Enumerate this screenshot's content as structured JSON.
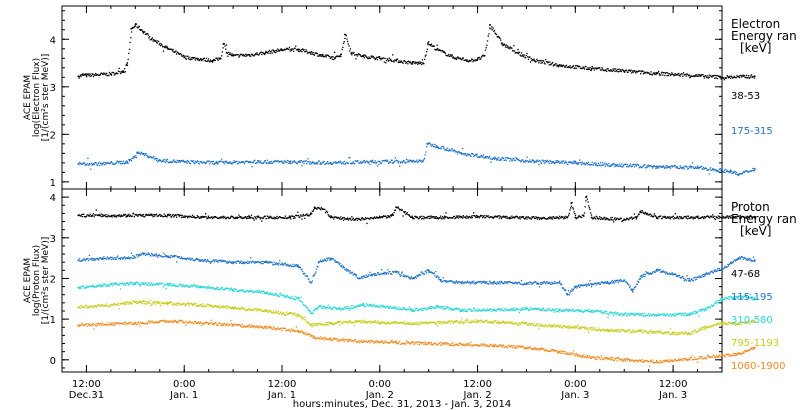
{
  "chart_data": [
    {
      "type": "scatter",
      "ylabel_lines": [
        "ACE EPAM",
        "log(Electron Flux)",
        "[1/(cm²s ster MeV)]"
      ],
      "ylim": [
        0.85,
        4.7
      ],
      "yticks": [
        1,
        2,
        3,
        4
      ],
      "legend_title": [
        "Electron",
        "Energy ran",
        "[keV]"
      ],
      "legend_placement": "right",
      "series": [
        {
          "name": "38-53",
          "color": "#000000",
          "points": [
            [
              -1,
              3.22
            ],
            [
              -0.5,
              3.25
            ],
            [
              0,
              3.24
            ],
            [
              3,
              3.27
            ],
            [
              4.5,
              3.33
            ],
            [
              5,
              3.5
            ],
            [
              5.5,
              4.22
            ],
            [
              6,
              4.3
            ],
            [
              7,
              4.15
            ],
            [
              8,
              4.0
            ],
            [
              10,
              3.8
            ],
            [
              12,
              3.62
            ],
            [
              14,
              3.58
            ],
            [
              15.5,
              3.55
            ],
            [
              16.4,
              3.6
            ],
            [
              16.8,
              3.9
            ],
            [
              17.2,
              3.72
            ],
            [
              18,
              3.65
            ],
            [
              20,
              3.67
            ],
            [
              22,
              3.72
            ],
            [
              24,
              3.78
            ],
            [
              26,
              3.78
            ],
            [
              27.5,
              3.72
            ],
            [
              29,
              3.65
            ],
            [
              30.5,
              3.6
            ],
            [
              31.2,
              3.68
            ],
            [
              31.7,
              4.1
            ],
            [
              32.5,
              3.7
            ],
            [
              34,
              3.64
            ],
            [
              36,
              3.6
            ],
            [
              38,
              3.55
            ],
            [
              40,
              3.5
            ],
            [
              41.3,
              3.5
            ],
            [
              41.9,
              3.92
            ],
            [
              43,
              3.78
            ],
            [
              45,
              3.62
            ],
            [
              47,
              3.55
            ],
            [
              48,
              3.58
            ],
            [
              48.8,
              3.65
            ],
            [
              49.5,
              4.3
            ],
            [
              51,
              3.9
            ],
            [
              53,
              3.7
            ],
            [
              55,
              3.55
            ],
            [
              58,
              3.45
            ],
            [
              62,
              3.38
            ],
            [
              66,
              3.33
            ],
            [
              70,
              3.28
            ],
            [
              74,
              3.24
            ],
            [
              78,
              3.2
            ],
            [
              82,
              3.22
            ]
          ]
        },
        {
          "name": "175-315",
          "color": "#1f73c6",
          "points": [
            [
              -1,
              1.38
            ],
            [
              2,
              1.38
            ],
            [
              5,
              1.42
            ],
            [
              5.7,
              1.5
            ],
            [
              6.2,
              1.62
            ],
            [
              7,
              1.58
            ],
            [
              9,
              1.45
            ],
            [
              12,
              1.42
            ],
            [
              16,
              1.4
            ],
            [
              20,
              1.42
            ],
            [
              25,
              1.42
            ],
            [
              30,
              1.4
            ],
            [
              35,
              1.42
            ],
            [
              40,
              1.43
            ],
            [
              41.3,
              1.44
            ],
            [
              41.8,
              1.8
            ],
            [
              43,
              1.75
            ],
            [
              46,
              1.6
            ],
            [
              50,
              1.5
            ],
            [
              55,
              1.43
            ],
            [
              60,
              1.4
            ],
            [
              65,
              1.35
            ],
            [
              70,
              1.32
            ],
            [
              75,
              1.3
            ],
            [
              79,
              1.22
            ],
            [
              80,
              1.15
            ],
            [
              82,
              1.28
            ]
          ]
        }
      ],
      "annotations": []
    },
    {
      "type": "scatter",
      "ylabel_lines": [
        "ACE EPAM",
        "log(Proton Flux)",
        "[1/(cm²s ster MeV)]"
      ],
      "ylim": [
        -0.3,
        4.2
      ],
      "yticks": [
        0,
        1,
        2,
        3,
        4
      ],
      "legend_title": [
        "Proton",
        "Energy ran",
        "[keV]"
      ],
      "legend_placement": "right",
      "series": [
        {
          "name": "47-68",
          "color": "#000000",
          "points": [
            [
              -1,
              3.55
            ],
            [
              5,
              3.55
            ],
            [
              10,
              3.55
            ],
            [
              15,
              3.5
            ],
            [
              20,
              3.5
            ],
            [
              25,
              3.5
            ],
            [
              27.5,
              3.58
            ],
            [
              28,
              3.75
            ],
            [
              29,
              3.7
            ],
            [
              30,
              3.5
            ],
            [
              33,
              3.45
            ],
            [
              36,
              3.5
            ],
            [
              37.5,
              3.55
            ],
            [
              38,
              3.75
            ],
            [
              40,
              3.5
            ],
            [
              44,
              3.5
            ],
            [
              48,
              3.52
            ],
            [
              52,
              3.5
            ],
            [
              56,
              3.48
            ],
            [
              59,
              3.5
            ],
            [
              59.5,
              3.85
            ],
            [
              60,
              3.5
            ],
            [
              61,
              3.55
            ],
            [
              61.3,
              4.0
            ],
            [
              62,
              3.5
            ],
            [
              66,
              3.45
            ],
            [
              67.5,
              3.5
            ],
            [
              68,
              3.65
            ],
            [
              70,
              3.5
            ],
            [
              75,
              3.5
            ],
            [
              82,
              3.52
            ]
          ]
        },
        {
          "name": "115-195",
          "color": "#1f73c6",
          "points": [
            [
              -1,
              2.45
            ],
            [
              2,
              2.5
            ],
            [
              5,
              2.5
            ],
            [
              7,
              2.6
            ],
            [
              10,
              2.55
            ],
            [
              14,
              2.45
            ],
            [
              18,
              2.4
            ],
            [
              22,
              2.4
            ],
            [
              26,
              2.3
            ],
            [
              27.5,
              1.9
            ],
            [
              28.5,
              2.4
            ],
            [
              30,
              2.5
            ],
            [
              32,
              2.2
            ],
            [
              33.5,
              2.0
            ],
            [
              35,
              2.1
            ],
            [
              38,
              2.15
            ],
            [
              40,
              2.0
            ],
            [
              42,
              2.2
            ],
            [
              43.5,
              1.95
            ],
            [
              46,
              1.9
            ],
            [
              50,
              1.9
            ],
            [
              54,
              1.88
            ],
            [
              58,
              1.9
            ],
            [
              59,
              1.6
            ],
            [
              60,
              1.8
            ],
            [
              62,
              1.85
            ],
            [
              64,
              1.9
            ],
            [
              66,
              1.95
            ],
            [
              67,
              1.7
            ],
            [
              68,
              2.05
            ],
            [
              70,
              2.2
            ],
            [
              72,
              2.1
            ],
            [
              74,
              1.95
            ],
            [
              76,
              2.1
            ],
            [
              78,
              2.25
            ],
            [
              80,
              2.5
            ],
            [
              82,
              2.45
            ]
          ]
        },
        {
          "name": "310-580",
          "color": "#23d6d6",
          "points": [
            [
              -1,
              1.78
            ],
            [
              3,
              1.85
            ],
            [
              6,
              1.88
            ],
            [
              10,
              1.85
            ],
            [
              14,
              1.8
            ],
            [
              18,
              1.72
            ],
            [
              22,
              1.65
            ],
            [
              26,
              1.5
            ],
            [
              27.5,
              1.15
            ],
            [
              28.5,
              1.3
            ],
            [
              31,
              1.25
            ],
            [
              34,
              1.35
            ],
            [
              37,
              1.3
            ],
            [
              40,
              1.22
            ],
            [
              43,
              1.3
            ],
            [
              46,
              1.22
            ],
            [
              50,
              1.22
            ],
            [
              54,
              1.25
            ],
            [
              58,
              1.22
            ],
            [
              62,
              1.2
            ],
            [
              66,
              1.12
            ],
            [
              70,
              1.1
            ],
            [
              74,
              1.12
            ],
            [
              76,
              1.25
            ],
            [
              78,
              1.5
            ],
            [
              80,
              1.55
            ],
            [
              82,
              1.5
            ]
          ]
        },
        {
          "name": "795-1193",
          "color": "#c6cc14",
          "points": [
            [
              -1,
              1.3
            ],
            [
              3,
              1.35
            ],
            [
              6,
              1.42
            ],
            [
              10,
              1.38
            ],
            [
              14,
              1.35
            ],
            [
              18,
              1.28
            ],
            [
              22,
              1.2
            ],
            [
              26,
              1.1
            ],
            [
              27.5,
              0.85
            ],
            [
              30,
              0.9
            ],
            [
              33,
              0.95
            ],
            [
              36,
              0.92
            ],
            [
              40,
              0.9
            ],
            [
              44,
              0.92
            ],
            [
              48,
              0.95
            ],
            [
              52,
              0.92
            ],
            [
              56,
              0.85
            ],
            [
              60,
              0.8
            ],
            [
              64,
              0.72
            ],
            [
              68,
              0.7
            ],
            [
              72,
              0.65
            ],
            [
              74,
              0.65
            ],
            [
              76,
              0.8
            ],
            [
              78,
              0.9
            ],
            [
              80,
              0.88
            ],
            [
              82,
              0.95
            ]
          ]
        },
        {
          "name": "1060-1900",
          "color": "#f08a1e",
          "points": [
            [
              -1,
              0.85
            ],
            [
              3,
              0.88
            ],
            [
              6,
              0.9
            ],
            [
              10,
              0.95
            ],
            [
              14,
              0.92
            ],
            [
              18,
              0.85
            ],
            [
              22,
              0.8
            ],
            [
              26,
              0.7
            ],
            [
              28,
              0.55
            ],
            [
              30,
              0.5
            ],
            [
              34,
              0.45
            ],
            [
              38,
              0.42
            ],
            [
              42,
              0.4
            ],
            [
              46,
              0.38
            ],
            [
              50,
              0.35
            ],
            [
              54,
              0.3
            ],
            [
              58,
              0.2
            ],
            [
              62,
              0.05
            ],
            [
              66,
              0.0
            ],
            [
              70,
              -0.05
            ],
            [
              74,
              0.02
            ],
            [
              78,
              0.1
            ],
            [
              80,
              0.15
            ],
            [
              82,
              0.3
            ]
          ]
        }
      ],
      "annotations": []
    }
  ],
  "x_axis": {
    "ticks": [
      {
        "value": 0,
        "line1": "12:00",
        "line2": "Dec.31"
      },
      {
        "value": 12,
        "line1": "0:00",
        "line2": "Jan. 1"
      },
      {
        "value": 24,
        "line1": "12:00",
        "line2": "Jan. 1"
      },
      {
        "value": 36,
        "line1": "0:00",
        "line2": "Jan. 2"
      },
      {
        "value": 48,
        "line1": "12:00",
        "line2": "Jan. 2"
      },
      {
        "value": 60,
        "line1": "0:00",
        "line2": "Jan. 3"
      },
      {
        "value": 72,
        "line1": "12:00",
        "line2": "Jan. 3"
      }
    ],
    "xlim": [
      -3,
      78
    ],
    "label": "hours:minutes, Dec. 31, 2013 - Jan. 3, 2014"
  },
  "x_axis_note": "x values are hours after 12:00 Dec. 31"
}
